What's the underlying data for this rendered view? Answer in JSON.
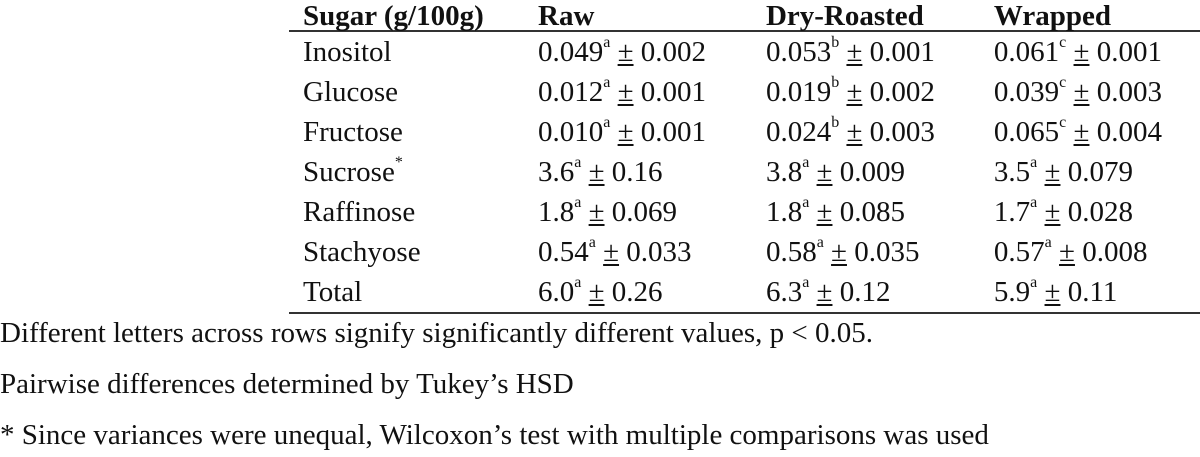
{
  "table": {
    "headers": [
      "Sugar (g/100g)",
      "Raw",
      "Dry-Roasted",
      "Wrapped"
    ],
    "rows": [
      {
        "sugar": "Inositol",
        "sugar_mark": "",
        "values": [
          {
            "mean": "0.049",
            "letter": "a",
            "pm": "±",
            "sd": "0.002"
          },
          {
            "mean": "0.053",
            "letter": "b",
            "pm": "±",
            "sd": "0.001"
          },
          {
            "mean": "0.061",
            "letter": "c",
            "pm": "±",
            "sd": "0.001"
          }
        ]
      },
      {
        "sugar": "Glucose",
        "sugar_mark": "",
        "values": [
          {
            "mean": "0.012",
            "letter": "a",
            "pm": "±",
            "sd": "0.001"
          },
          {
            "mean": "0.019",
            "letter": "b",
            "pm": "±",
            "sd": "0.002"
          },
          {
            "mean": "0.039",
            "letter": "c",
            "pm": "±",
            "sd": "0.003"
          }
        ]
      },
      {
        "sugar": "Fructose",
        "sugar_mark": "",
        "values": [
          {
            "mean": "0.010",
            "letter": "a",
            "pm": "±",
            "sd": "0.001"
          },
          {
            "mean": "0.024",
            "letter": "b",
            "pm": "±",
            "sd": "0.003"
          },
          {
            "mean": "0.065",
            "letter": "c",
            "pm": "±",
            "sd": "0.004"
          }
        ]
      },
      {
        "sugar": "Sucrose",
        "sugar_mark": "*",
        "values": [
          {
            "mean": "3.6",
            "letter": "a",
            "pm": "±",
            "sd": "0.16"
          },
          {
            "mean": "3.8",
            "letter": "a",
            "pm": "±",
            "sd": "0.009"
          },
          {
            "mean": "3.5",
            "letter": "a",
            "pm": "±",
            "sd": "0.079"
          }
        ]
      },
      {
        "sugar": "Raffinose",
        "sugar_mark": "",
        "values": [
          {
            "mean": "1.8",
            "letter": "a",
            "pm": "±",
            "sd": "0.069"
          },
          {
            "mean": "1.8",
            "letter": "a",
            "pm": "±",
            "sd": "0.085"
          },
          {
            "mean": "1.7",
            "letter": "a",
            "pm": "±",
            "sd": "0.028"
          }
        ]
      },
      {
        "sugar": "Stachyose",
        "sugar_mark": "",
        "values": [
          {
            "mean": "0.54",
            "letter": "a",
            "pm": "±",
            "sd": "0.033"
          },
          {
            "mean": "0.58",
            "letter": "a",
            "pm": "±",
            "sd": "0.035"
          },
          {
            "mean": "0.57",
            "letter": "a",
            "pm": "±",
            "sd": "0.008"
          }
        ]
      },
      {
        "sugar": "Total",
        "sugar_mark": "",
        "values": [
          {
            "mean": "6.0",
            "letter": "a",
            "pm": "±",
            "sd": "0.26"
          },
          {
            "mean": "6.3",
            "letter": "a",
            "pm": "±",
            "sd": "0.12"
          },
          {
            "mean": "5.9",
            "letter": "a",
            "pm": "±",
            "sd": "0.11"
          }
        ]
      }
    ]
  },
  "notes": {
    "significance": "Different letters across rows signify significantly different values, p < 0.05.",
    "tukey": "Pairwise differences determined by Tukey’s HSD",
    "wilcoxon": "* Since variances were unequal, Wilcoxon’s test with multiple comparisons was used"
  }
}
